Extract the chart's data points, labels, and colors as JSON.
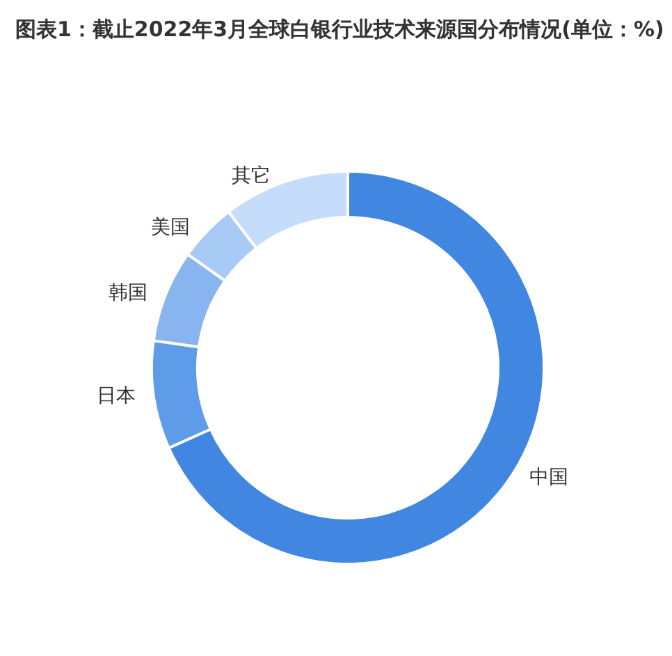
{
  "chart_data": {
    "type": "donut",
    "title": "图表1：截止2022年3月全球白银行业技术来源国分布情况(单位：%)",
    "categories": [
      "中国",
      "日本",
      "韩国",
      "美国",
      "其它"
    ],
    "values": [
      68.3,
      8.9,
      7.6,
      4.8,
      10.4
    ],
    "colors": [
      "#4186e0",
      "#5e9be8",
      "#88b5f0",
      "#a8cbf5",
      "#c5ddfa"
    ],
    "legend": false
  }
}
